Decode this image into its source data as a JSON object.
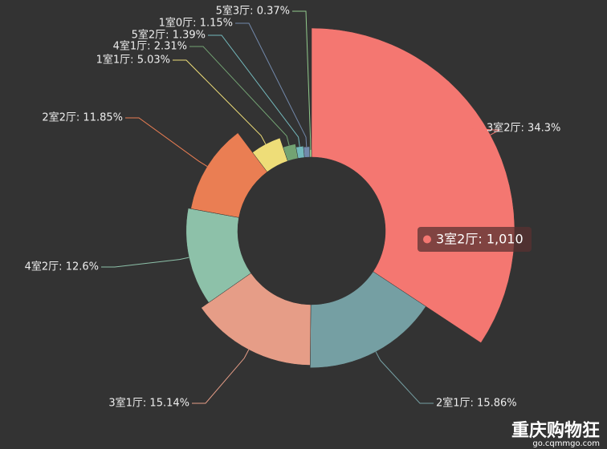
{
  "chart_data": {
    "type": "rose",
    "value_labels": [
      "3室2厅: 34.3%",
      "2室1厅: 15.86%",
      "3室1厅: 15.14%",
      "4室2厅: 12.6%",
      "2室2厅: 11.85%",
      "1室1厅: 5.03%",
      "4室1厅: 2.31%",
      "5室2厅: 1.39%",
      "1室0厅: 1.15%",
      "5室3厅: 0.37%"
    ],
    "values": [
      34.3,
      15.86,
      15.14,
      12.6,
      11.85,
      5.03,
      2.31,
      1.39,
      1.15,
      0.37
    ],
    "colors": [
      "#f47771",
      "#759fa3",
      "#e69d87",
      "#8dc1a9",
      "#ea7e53",
      "#eedd78",
      "#73a373",
      "#73b9bc",
      "#7289ab",
      "#91ca8c"
    ],
    "tooltip": {
      "text": "3室2厅: 1,010"
    }
  },
  "watermark": {
    "title": "重庆购物狂",
    "url": "go.cqmmgo.com"
  }
}
